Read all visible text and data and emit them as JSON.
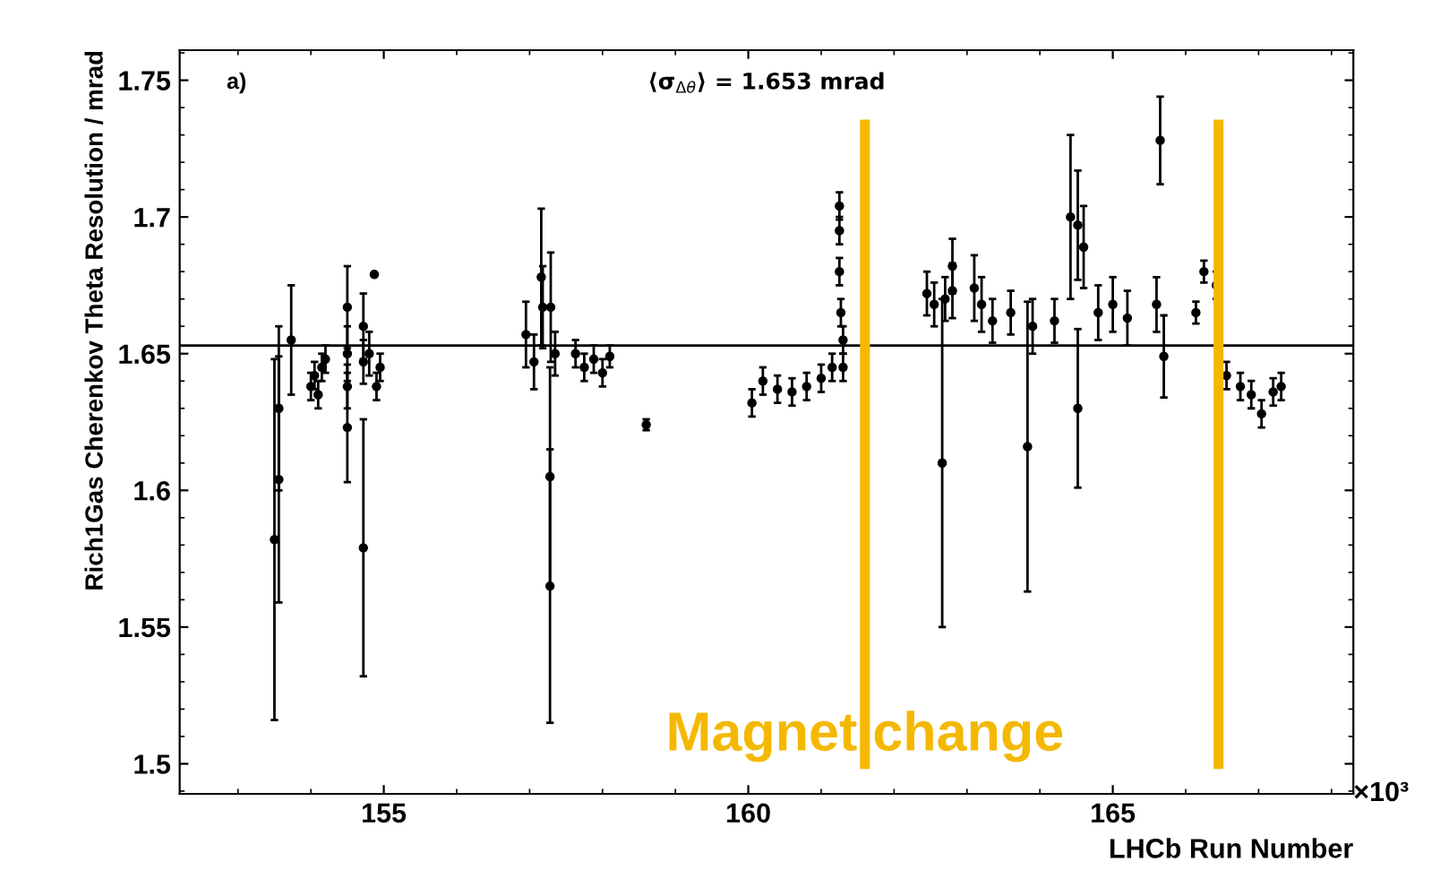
{
  "chart_data": {
    "type": "scatter",
    "xlabel": "LHCb Run Number",
    "ylabel": "Rich1Gas Cherenkov Theta Resolution / mrad",
    "xlim": [
      152.2,
      168.3
    ],
    "xticks": [
      155,
      160,
      165
    ],
    "ylim": [
      1.489,
      1.761
    ],
    "yticks": [
      1.5,
      1.55,
      1.6,
      1.65,
      1.7,
      1.75
    ],
    "grid": false,
    "marker": "circle",
    "series": [
      {
        "color": "#000000",
        "x": [
          153.5,
          153.56,
          153.56,
          153.73,
          154.0,
          154.05,
          154.1,
          154.15,
          154.2,
          154.5,
          154.5,
          154.5,
          154.5,
          154.72,
          154.72,
          154.72,
          154.8,
          154.87,
          154.9,
          154.95,
          156.95,
          157.06,
          157.16,
          157.18,
          157.28,
          157.28,
          157.29,
          157.35,
          157.63,
          157.75,
          157.88,
          158.0,
          158.1,
          158.6,
          160.05,
          160.2,
          160.4,
          160.6,
          160.8,
          161.0,
          161.15,
          161.25,
          161.25,
          161.25,
          161.27,
          161.3,
          161.3,
          162.45,
          162.55,
          162.66,
          162.7,
          162.8,
          162.8,
          163.1,
          163.2,
          163.35,
          163.6,
          163.83,
          163.9,
          164.2,
          164.42,
          164.52,
          164.52,
          164.6,
          164.8,
          165.0,
          165.2,
          165.65,
          165.6,
          165.7,
          166.14,
          166.25,
          166.42,
          166.56,
          166.75,
          166.9,
          167.04,
          167.2,
          167.31
        ],
        "values": [
          1.582,
          1.63,
          1.604,
          1.655,
          1.638,
          1.642,
          1.635,
          1.645,
          1.648,
          1.667,
          1.65,
          1.623,
          1.638,
          1.66,
          1.579,
          1.647,
          1.65,
          1.679,
          1.638,
          1.645,
          1.657,
          1.647,
          1.678,
          1.667,
          1.605,
          1.565,
          1.667,
          1.65,
          1.65,
          1.645,
          1.648,
          1.643,
          1.649,
          1.624,
          1.632,
          1.64,
          1.637,
          1.636,
          1.638,
          1.641,
          1.645,
          1.704,
          1.695,
          1.68,
          1.665,
          1.655,
          1.645,
          1.672,
          1.668,
          1.61,
          1.67,
          1.673,
          1.682,
          1.674,
          1.668,
          1.662,
          1.665,
          1.616,
          1.66,
          1.662,
          1.7,
          1.697,
          1.63,
          1.689,
          1.665,
          1.668,
          1.663,
          1.728,
          1.668,
          1.649,
          1.665,
          1.68,
          1.675,
          1.642,
          1.638,
          1.635,
          1.628,
          1.636,
          1.638
        ],
        "errors": [
          0.066,
          0.03,
          0.045,
          0.02,
          0.005,
          0.005,
          0.005,
          0.005,
          0.005,
          0.015,
          0.01,
          0.02,
          0.008,
          0.012,
          0.047,
          0.008,
          0.008,
          null,
          0.005,
          0.005,
          0.012,
          0.01,
          0.025,
          0.015,
          0.04,
          0.05,
          0.02,
          0.008,
          0.005,
          0.005,
          0.005,
          0.005,
          0.004,
          0.002,
          0.005,
          0.005,
          0.005,
          0.005,
          0.005,
          0.005,
          0.005,
          0.005,
          0.005,
          0.005,
          0.005,
          0.005,
          0.005,
          0.008,
          0.008,
          0.06,
          0.008,
          0.01,
          0.01,
          0.012,
          0.01,
          0.008,
          0.008,
          0.053,
          0.01,
          0.008,
          0.03,
          0.02,
          0.029,
          0.015,
          0.01,
          0.01,
          0.01,
          0.016,
          0.01,
          0.015,
          0.004,
          0.004,
          0.005,
          0.005,
          0.005,
          0.005,
          0.005,
          0.005,
          0.005
        ]
      }
    ],
    "ref_lines": [
      {
        "axis": "y",
        "value": 1.653,
        "label": "⟨σ$_{Δθ}$⟩ = 1.653 mrad",
        "color": "#000000"
      },
      {
        "axis": "x",
        "value": 161.6,
        "color": "#f5b800"
      },
      {
        "axis": "x",
        "value": 166.45,
        "color": "#f5b800"
      }
    ],
    "annotations": [
      "a)",
      "×10³",
      {
        "text": "Magnet change",
        "x": 161.6,
        "y": 1.51
      }
    ]
  }
}
